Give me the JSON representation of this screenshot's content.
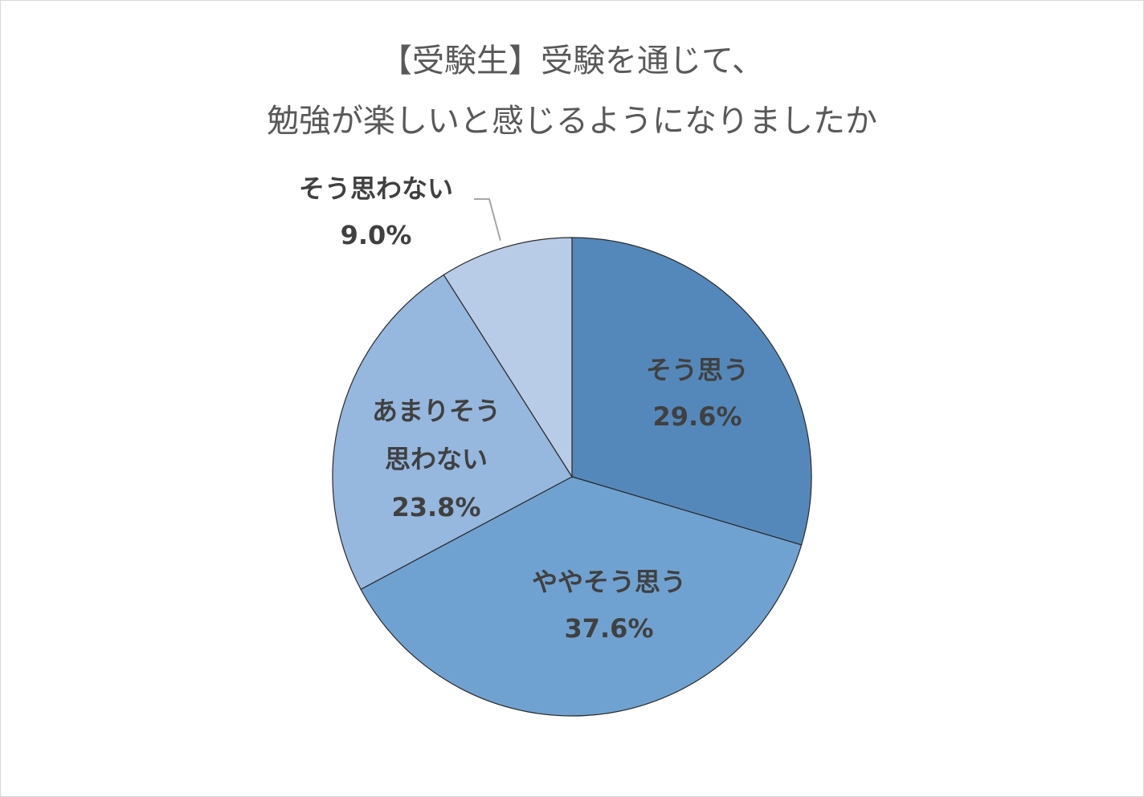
{
  "chart_data": {
    "type": "pie",
    "title_lines": [
      "【受験生】受験を通じて、",
      "勉強が楽しいと感じるようになりましたか"
    ],
    "slices": [
      {
        "label_lines": [
          "そう思う"
        ],
        "value_text": "29.6%",
        "value": 29.6,
        "color": "#5588ba"
      },
      {
        "label_lines": [
          "ややそう思う"
        ],
        "value_text": "37.6%",
        "value": 37.6,
        "color": "#70a2d1"
      },
      {
        "label_lines": [
          "あまりそう",
          "思わない"
        ],
        "value_text": "23.8%",
        "value": 23.8,
        "color": "#96b7de"
      },
      {
        "label_lines": [
          "そう思わない"
        ],
        "value_text": "9.0%",
        "value": 9.0,
        "color": "#b8cce7"
      }
    ],
    "start": "12 o'clock",
    "direction": "clockwise"
  }
}
